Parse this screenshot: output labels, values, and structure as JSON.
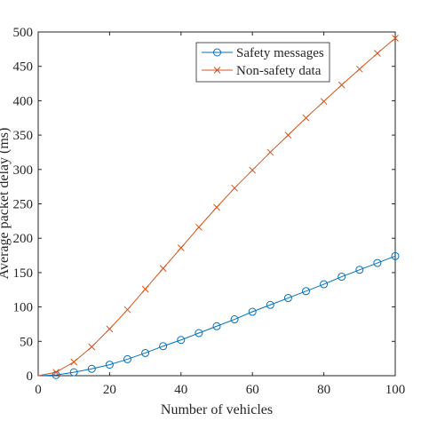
{
  "chart_data": {
    "type": "line",
    "title": "",
    "xlabel": "Number of vehicles",
    "ylabel": "Average packet delay (ms)",
    "xlim": [
      0,
      100
    ],
    "ylim": [
      0,
      500
    ],
    "xticks": [
      0,
      20,
      40,
      60,
      80,
      100
    ],
    "yticks": [
      0,
      50,
      100,
      150,
      200,
      250,
      300,
      350,
      400,
      450,
      500
    ],
    "grid": false,
    "legend_position": "top-right",
    "x": [
      5,
      10,
      15,
      20,
      25,
      30,
      35,
      40,
      45,
      50,
      55,
      60,
      65,
      70,
      75,
      80,
      85,
      90,
      95,
      100
    ],
    "series": [
      {
        "name": "Safety messages",
        "marker": "circle",
        "color": "#0072BD",
        "values": [
          1,
          5,
          10,
          16,
          24,
          33,
          43,
          52,
          62,
          72,
          82,
          93,
          103,
          113,
          123,
          133,
          144,
          154,
          164,
          174
        ]
      },
      {
        "name": "Non-safety data",
        "marker": "x",
        "color": "#D95319",
        "values": [
          5,
          20,
          42,
          68,
          96,
          126,
          156,
          186,
          216,
          245,
          273,
          299,
          325,
          350,
          375,
          399,
          423,
          446,
          469,
          491
        ]
      }
    ]
  }
}
